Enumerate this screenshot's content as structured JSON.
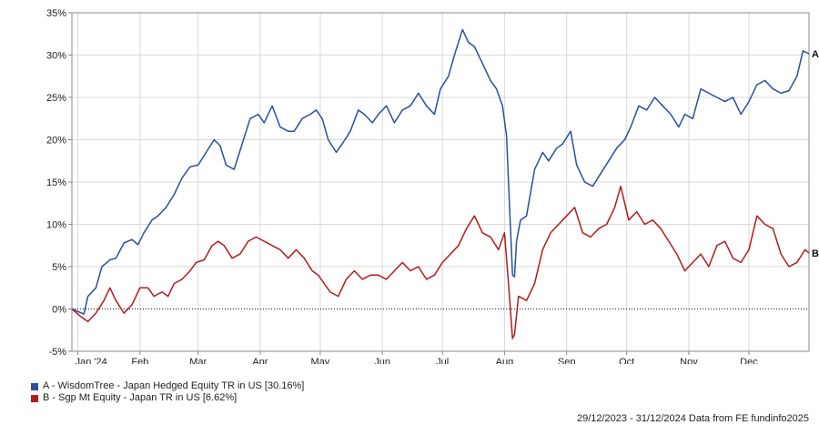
{
  "chart_data": {
    "type": "line",
    "x_range": [
      "2023-12-29",
      "2024-12-31"
    ],
    "ylim": [
      -5,
      35
    ],
    "y_ticks": [
      -5,
      0,
      5,
      10,
      15,
      20,
      25,
      30,
      35
    ],
    "y_tick_labels": [
      "-5%",
      "0%",
      "5%",
      "10%",
      "15%",
      "20%",
      "25%",
      "30%",
      "35%"
    ],
    "x_tick_labels": [
      "Jan '24",
      "Feb",
      "Mar",
      "Apr",
      "May",
      "Jun",
      "Jul",
      "Aug",
      "Sep",
      "Oct",
      "Nov",
      "Dec"
    ],
    "x_tick_dates": [
      "2024-01-01",
      "2024-02-01",
      "2024-03-01",
      "2024-04-01",
      "2024-05-01",
      "2024-06-01",
      "2024-07-01",
      "2024-08-01",
      "2024-09-01",
      "2024-10-01",
      "2024-11-01",
      "2024-12-01"
    ],
    "grid": true,
    "zero_line": "dotted",
    "series": [
      {
        "id": "A",
        "name": "A - WisdomTree - Japan Hedged Equity TR in US [30.16%]",
        "end_label": "A",
        "color": "#2b4ea2",
        "points": [
          [
            "2023-12-29",
            0.0
          ],
          [
            "2024-01-04",
            -0.6
          ],
          [
            "2024-01-06",
            1.5
          ],
          [
            "2024-01-10",
            2.5
          ],
          [
            "2024-01-13",
            5.0
          ],
          [
            "2024-01-17",
            5.8
          ],
          [
            "2024-01-20",
            6.0
          ],
          [
            "2024-01-24",
            7.8
          ],
          [
            "2024-01-28",
            8.2
          ],
          [
            "2024-01-31",
            7.6
          ],
          [
            "2024-02-03",
            9.0
          ],
          [
            "2024-02-07",
            10.5
          ],
          [
            "2024-02-10",
            11.0
          ],
          [
            "2024-02-14",
            12.0
          ],
          [
            "2024-02-18",
            13.5
          ],
          [
            "2024-02-22",
            15.5
          ],
          [
            "2024-02-26",
            16.8
          ],
          [
            "2024-03-01",
            17.0
          ],
          [
            "2024-03-05",
            18.5
          ],
          [
            "2024-03-09",
            20.0
          ],
          [
            "2024-03-12",
            19.3
          ],
          [
            "2024-03-15",
            17.0
          ],
          [
            "2024-03-19",
            16.5
          ],
          [
            "2024-03-23",
            19.5
          ],
          [
            "2024-03-27",
            22.5
          ],
          [
            "2024-03-31",
            23.0
          ],
          [
            "2024-04-03",
            22.0
          ],
          [
            "2024-04-07",
            24.0
          ],
          [
            "2024-04-11",
            21.5
          ],
          [
            "2024-04-15",
            21.0
          ],
          [
            "2024-04-18",
            21.0
          ],
          [
            "2024-04-22",
            22.5
          ],
          [
            "2024-04-26",
            23.0
          ],
          [
            "2024-04-29",
            23.5
          ],
          [
            "2024-05-02",
            22.5
          ],
          [
            "2024-05-05",
            20.0
          ],
          [
            "2024-05-09",
            18.5
          ],
          [
            "2024-05-12",
            19.5
          ],
          [
            "2024-05-16",
            21.0
          ],
          [
            "2024-05-20",
            23.5
          ],
          [
            "2024-05-23",
            23.0
          ],
          [
            "2024-05-27",
            22.0
          ],
          [
            "2024-05-30",
            23.0
          ],
          [
            "2024-06-03",
            24.0
          ],
          [
            "2024-06-07",
            22.0
          ],
          [
            "2024-06-11",
            23.5
          ],
          [
            "2024-06-15",
            24.0
          ],
          [
            "2024-06-19",
            25.5
          ],
          [
            "2024-06-23",
            24.0
          ],
          [
            "2024-06-27",
            23.0
          ],
          [
            "2024-06-30",
            26.0
          ],
          [
            "2024-07-04",
            27.5
          ],
          [
            "2024-07-07",
            30.0
          ],
          [
            "2024-07-11",
            33.0
          ],
          [
            "2024-07-14",
            31.5
          ],
          [
            "2024-07-17",
            31.0
          ],
          [
            "2024-07-21",
            29.0
          ],
          [
            "2024-07-25",
            27.0
          ],
          [
            "2024-07-28",
            26.0
          ],
          [
            "2024-07-31",
            24.0
          ],
          [
            "2024-08-02",
            20.5
          ],
          [
            "2024-08-05",
            4.0
          ],
          [
            "2024-08-06",
            3.8
          ],
          [
            "2024-08-07",
            8.0
          ],
          [
            "2024-08-09",
            10.5
          ],
          [
            "2024-08-12",
            11.0
          ],
          [
            "2024-08-16",
            16.5
          ],
          [
            "2024-08-20",
            18.5
          ],
          [
            "2024-08-23",
            17.5
          ],
          [
            "2024-08-27",
            19.0
          ],
          [
            "2024-08-30",
            19.5
          ],
          [
            "2024-09-03",
            21.0
          ],
          [
            "2024-09-06",
            17.0
          ],
          [
            "2024-09-10",
            15.0
          ],
          [
            "2024-09-14",
            14.5
          ],
          [
            "2024-09-18",
            16.0
          ],
          [
            "2024-09-22",
            17.5
          ],
          [
            "2024-09-26",
            19.0
          ],
          [
            "2024-09-30",
            20.0
          ],
          [
            "2024-10-03",
            21.5
          ],
          [
            "2024-10-07",
            24.0
          ],
          [
            "2024-10-11",
            23.5
          ],
          [
            "2024-10-15",
            25.0
          ],
          [
            "2024-10-19",
            24.0
          ],
          [
            "2024-10-23",
            23.0
          ],
          [
            "2024-10-27",
            21.5
          ],
          [
            "2024-10-30",
            23.0
          ],
          [
            "2024-11-03",
            22.5
          ],
          [
            "2024-11-07",
            26.0
          ],
          [
            "2024-11-11",
            25.5
          ],
          [
            "2024-11-15",
            25.0
          ],
          [
            "2024-11-19",
            24.5
          ],
          [
            "2024-11-23",
            25.0
          ],
          [
            "2024-11-27",
            23.0
          ],
          [
            "2024-12-01",
            24.5
          ],
          [
            "2024-12-05",
            26.5
          ],
          [
            "2024-12-09",
            27.0
          ],
          [
            "2024-12-13",
            26.0
          ],
          [
            "2024-12-17",
            25.5
          ],
          [
            "2024-12-21",
            25.8
          ],
          [
            "2024-12-25",
            27.5
          ],
          [
            "2024-12-28",
            30.5
          ],
          [
            "2024-12-31",
            30.16
          ]
        ]
      },
      {
        "id": "B",
        "name": "B - Sgp Mt Equity - Japan TR in US [6.62%]",
        "end_label": "B",
        "color": "#b01c1c",
        "points": [
          [
            "2023-12-29",
            0.0
          ],
          [
            "2024-01-03",
            -1.0
          ],
          [
            "2024-01-06",
            -1.5
          ],
          [
            "2024-01-10",
            -0.5
          ],
          [
            "2024-01-14",
            1.0
          ],
          [
            "2024-01-17",
            2.5
          ],
          [
            "2024-01-20",
            1.0
          ],
          [
            "2024-01-24",
            -0.5
          ],
          [
            "2024-01-28",
            0.5
          ],
          [
            "2024-02-01",
            2.5
          ],
          [
            "2024-02-05",
            2.5
          ],
          [
            "2024-02-08",
            1.5
          ],
          [
            "2024-02-12",
            2.0
          ],
          [
            "2024-02-15",
            1.5
          ],
          [
            "2024-02-18",
            3.0
          ],
          [
            "2024-02-22",
            3.5
          ],
          [
            "2024-02-26",
            4.5
          ],
          [
            "2024-02-29",
            5.5
          ],
          [
            "2024-03-04",
            5.8
          ],
          [
            "2024-03-08",
            7.5
          ],
          [
            "2024-03-11",
            8.0
          ],
          [
            "2024-03-14",
            7.5
          ],
          [
            "2024-03-18",
            6.0
          ],
          [
            "2024-03-22",
            6.5
          ],
          [
            "2024-03-26",
            8.0
          ],
          [
            "2024-03-30",
            8.5
          ],
          [
            "2024-04-03",
            8.0
          ],
          [
            "2024-04-07",
            7.5
          ],
          [
            "2024-04-11",
            7.0
          ],
          [
            "2024-04-15",
            6.0
          ],
          [
            "2024-04-19",
            7.0
          ],
          [
            "2024-04-23",
            6.0
          ],
          [
            "2024-04-27",
            4.5
          ],
          [
            "2024-04-30",
            4.0
          ],
          [
            "2024-05-03",
            3.0
          ],
          [
            "2024-05-06",
            2.0
          ],
          [
            "2024-05-10",
            1.5
          ],
          [
            "2024-05-14",
            3.5
          ],
          [
            "2024-05-18",
            4.5
          ],
          [
            "2024-05-22",
            3.5
          ],
          [
            "2024-05-26",
            4.0
          ],
          [
            "2024-05-30",
            4.0
          ],
          [
            "2024-06-03",
            3.5
          ],
          [
            "2024-06-07",
            4.5
          ],
          [
            "2024-06-11",
            5.5
          ],
          [
            "2024-06-15",
            4.5
          ],
          [
            "2024-06-19",
            5.0
          ],
          [
            "2024-06-23",
            3.5
          ],
          [
            "2024-06-27",
            4.0
          ],
          [
            "2024-07-01",
            5.5
          ],
          [
            "2024-07-05",
            6.5
          ],
          [
            "2024-07-09",
            7.5
          ],
          [
            "2024-07-13",
            9.5
          ],
          [
            "2024-07-17",
            11.0
          ],
          [
            "2024-07-21",
            9.0
          ],
          [
            "2024-07-25",
            8.5
          ],
          [
            "2024-07-29",
            7.0
          ],
          [
            "2024-08-01",
            9.0
          ],
          [
            "2024-08-03",
            3.0
          ],
          [
            "2024-08-05",
            -3.5
          ],
          [
            "2024-08-06",
            -3.0
          ],
          [
            "2024-08-08",
            1.5
          ],
          [
            "2024-08-12",
            1.0
          ],
          [
            "2024-08-16",
            3.0
          ],
          [
            "2024-08-20",
            7.0
          ],
          [
            "2024-08-24",
            9.0
          ],
          [
            "2024-08-28",
            10.0
          ],
          [
            "2024-09-01",
            11.0
          ],
          [
            "2024-09-05",
            12.0
          ],
          [
            "2024-09-09",
            9.0
          ],
          [
            "2024-09-13",
            8.5
          ],
          [
            "2024-09-17",
            9.5
          ],
          [
            "2024-09-21",
            10.0
          ],
          [
            "2024-09-25",
            12.0
          ],
          [
            "2024-09-28",
            14.5
          ],
          [
            "2024-10-02",
            10.5
          ],
          [
            "2024-10-06",
            11.5
          ],
          [
            "2024-10-10",
            10.0
          ],
          [
            "2024-10-14",
            10.5
          ],
          [
            "2024-10-18",
            9.5
          ],
          [
            "2024-10-22",
            8.0
          ],
          [
            "2024-10-26",
            6.5
          ],
          [
            "2024-10-30",
            4.5
          ],
          [
            "2024-11-03",
            5.5
          ],
          [
            "2024-11-07",
            6.5
          ],
          [
            "2024-11-11",
            5.0
          ],
          [
            "2024-11-15",
            7.5
          ],
          [
            "2024-11-19",
            8.0
          ],
          [
            "2024-11-23",
            6.0
          ],
          [
            "2024-11-27",
            5.5
          ],
          [
            "2024-12-01",
            7.0
          ],
          [
            "2024-12-05",
            11.0
          ],
          [
            "2024-12-09",
            10.0
          ],
          [
            "2024-12-13",
            9.5
          ],
          [
            "2024-12-17",
            6.5
          ],
          [
            "2024-12-21",
            5.0
          ],
          [
            "2024-12-25",
            5.5
          ],
          [
            "2024-12-29",
            7.0
          ],
          [
            "2024-12-31",
            6.62
          ]
        ]
      }
    ]
  },
  "legend": {
    "items": [
      {
        "label": "A - WisdomTree - Japan Hedged Equity TR in US [30.16%]",
        "color": "#2b4ea2"
      },
      {
        "label": "B - Sgp Mt Equity - Japan TR in US [6.62%]",
        "color": "#b01c1c"
      }
    ]
  },
  "footer": {
    "date_range": "29/12/2023 - 31/12/2024",
    "source": "Data from FE fundinfo2025"
  }
}
